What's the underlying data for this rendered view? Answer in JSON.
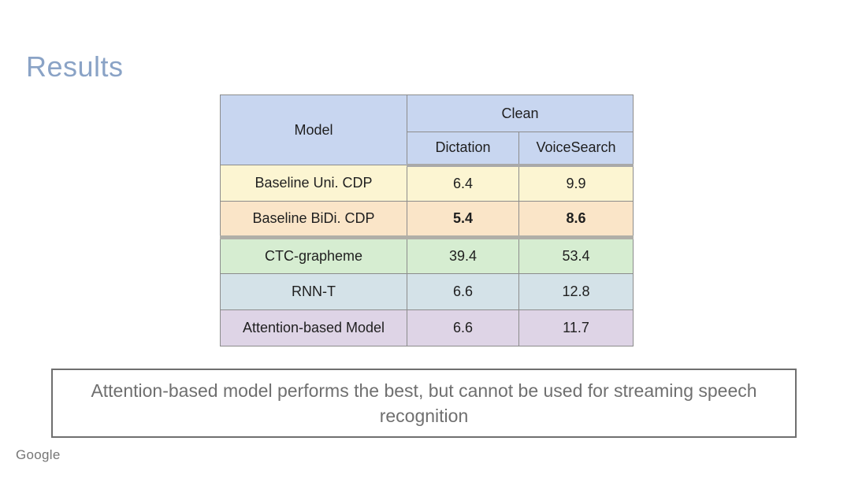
{
  "slide": {
    "title": "Results",
    "logo": "Google"
  },
  "table": {
    "header": {
      "model": "Model",
      "clean": "Clean",
      "subcolumns": [
        "Dictation",
        "VoiceSearch"
      ]
    },
    "rows": [
      {
        "model": "Baseline Uni. CDP",
        "dictation": "6.4",
        "voicesearch": "9.9",
        "bold": false
      },
      {
        "model": "Baseline BiDi. CDP",
        "dictation": "5.4",
        "voicesearch": "8.6",
        "bold": true
      },
      {
        "model": "CTC-grapheme",
        "dictation": "39.4",
        "voicesearch": "53.4",
        "bold": false
      },
      {
        "model": "RNN-T",
        "dictation": "6.6",
        "voicesearch": "12.8",
        "bold": false
      },
      {
        "model": "Attention-based Model",
        "dictation": "6.6",
        "voicesearch": "11.7",
        "bold": false
      }
    ]
  },
  "callout": {
    "text": "Attention-based model performs the best, but cannot be used for streaming speech recognition"
  },
  "colors": {
    "title_text": "#8aa3c6",
    "header_bg": "#c8d6f0",
    "row_backgrounds": [
      "#fcf5d2",
      "#fae5c8",
      "#d6edd1",
      "#d4e2e8",
      "#ded4e6"
    ],
    "table_border": "#8c8c8c",
    "separator_band": "#a9a9a9",
    "callout_border": "#6f6f6f",
    "callout_text": "#6f6f6f",
    "logo_text": "#767676"
  }
}
